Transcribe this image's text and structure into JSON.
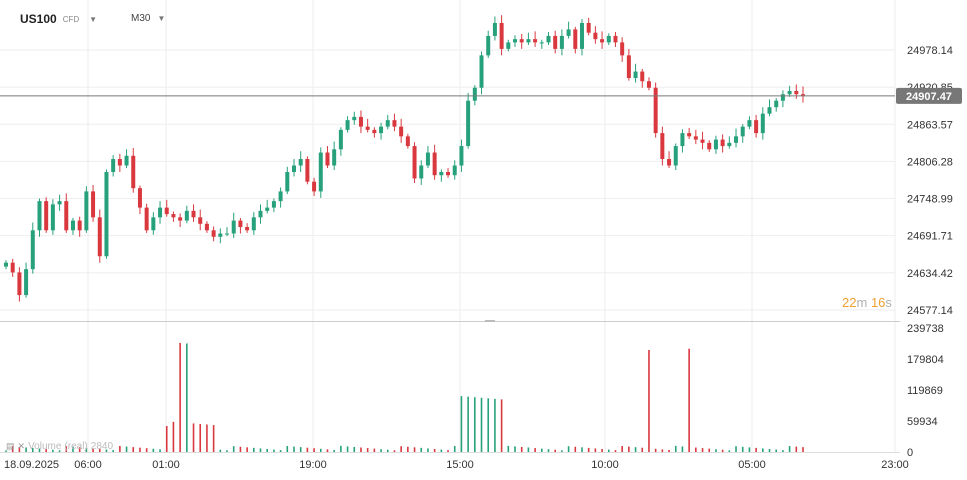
{
  "header": {
    "symbol": "US100",
    "instrument_type": "CFD",
    "timeframe": "M30"
  },
  "countdown": {
    "minutes": "22",
    "minutes_unit": "m",
    "seconds": "16",
    "seconds_unit": "s"
  },
  "volume_legend": {
    "label": "Volume",
    "period_label": "(real)",
    "value": "2840"
  },
  "colors": {
    "up": "#26a17b",
    "down": "#d9383f",
    "grid": "#eeeeee",
    "price_line": "#777777",
    "price_tag_bg": "#777777",
    "text": "#333333"
  },
  "chart_data": [
    {
      "type": "candlestick",
      "title": "US100",
      "y_ticks": [
        24577.14,
        24634.42,
        24691.71,
        24748.99,
        24806.28,
        24863.57,
        24920.85,
        24978.14
      ],
      "ylim": [
        24560,
        25040
      ],
      "x_ticks": [
        "18.09.2025",
        "06:00",
        "01:00",
        "19:00",
        "15:00",
        "10:00",
        "05:00",
        "23:00"
      ],
      "current_price": 24907.47,
      "grid": true,
      "candles_y": [
        24650,
        24635,
        24600,
        24640,
        24700,
        24745,
        24700,
        24740,
        24745,
        24700,
        24715,
        24700,
        24760,
        24720,
        24660,
        24790,
        24810,
        24800,
        24815,
        24765,
        24735,
        24700,
        24720,
        24735,
        24725,
        24720,
        24715,
        24730,
        24720,
        24710,
        24700,
        24690,
        24695,
        24695,
        24715,
        24705,
        24700,
        24720,
        24730,
        24735,
        24745,
        24760,
        24790,
        24800,
        24810,
        24775,
        24760,
        24820,
        24800,
        24825,
        24855,
        24870,
        24875,
        24860,
        24855,
        24850,
        24860,
        24870,
        24860,
        24845,
        24830,
        24780,
        24800,
        24820,
        24785,
        24790,
        24785,
        24800,
        24830,
        24900,
        24920,
        24970,
        25000,
        25020,
        24980,
        24990,
        24995,
        24990,
        24995,
        24990,
        24990,
        25000,
        24980,
        25000,
        25010,
        24980,
        25020,
        25005,
        24995,
        24990,
        25000,
        24990,
        24970,
        24935,
        24945,
        24930,
        24920,
        24850,
        24810,
        24800,
        24830,
        24850,
        24845,
        24840,
        24835,
        24825,
        24840,
        24830,
        24835,
        24845,
        24860,
        24870,
        24850,
        24880,
        24890,
        24900,
        24910,
        24915,
        24910,
        24907
      ],
      "volume_ylim": [
        0,
        239738
      ],
      "volume_ticks": [
        0,
        59934,
        119869,
        179804,
        239738
      ]
    }
  ]
}
